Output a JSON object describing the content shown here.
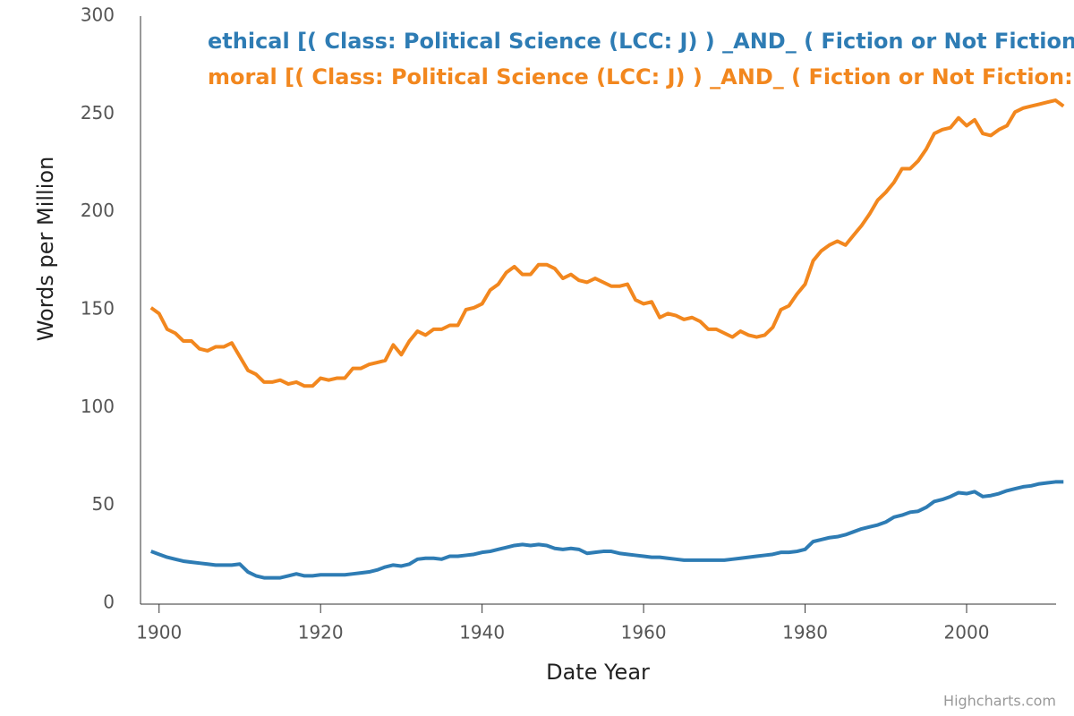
{
  "chart_data": {
    "type": "line",
    "xlabel": "Date Year",
    "ylabel": "Words per Million",
    "credit": "Highcharts.com",
    "x": [
      1899,
      1900,
      1901,
      1902,
      1903,
      1904,
      1905,
      1906,
      1907,
      1908,
      1909,
      1910,
      1911,
      1912,
      1913,
      1914,
      1915,
      1916,
      1917,
      1918,
      1919,
      1920,
      1921,
      1922,
      1923,
      1924,
      1925,
      1926,
      1927,
      1928,
      1929,
      1930,
      1931,
      1932,
      1933,
      1934,
      1935,
      1936,
      1937,
      1938,
      1939,
      1940,
      1941,
      1942,
      1943,
      1944,
      1945,
      1946,
      1947,
      1948,
      1949,
      1950,
      1951,
      1952,
      1953,
      1954,
      1955,
      1956,
      1957,
      1958,
      1959,
      1960,
      1961,
      1962,
      1963,
      1964,
      1965,
      1966,
      1967,
      1968,
      1969,
      1970,
      1971,
      1972,
      1973,
      1974,
      1975,
      1976,
      1977,
      1978,
      1979,
      1980,
      1981,
      1982,
      1983,
      1984,
      1985,
      1986,
      1987,
      1988,
      1989,
      1990,
      1991,
      1992,
      1993,
      1994,
      1995,
      1996,
      1997,
      1998,
      1999,
      2000,
      2001,
      2002,
      2003,
      2004,
      2005,
      2006,
      2007,
      2008,
      2009,
      2010,
      2011,
      2012
    ],
    "series": [
      {
        "name": "ethical [( Class: Political Science (LCC: J) ) _AND_ ( Fiction or Not Fiction:",
        "color": "#2e7cb4",
        "values": [
          26.5,
          25,
          23.5,
          22.5,
          21.5,
          21,
          20.5,
          20,
          19.5,
          19.5,
          19.5,
          20,
          16,
          14,
          13,
          13,
          13,
          14,
          15,
          14,
          14,
          14.5,
          14.5,
          14.5,
          14.5,
          15,
          15.5,
          16,
          17,
          18.5,
          19.5,
          19,
          20,
          22.5,
          23,
          23,
          22.5,
          24,
          24,
          24.5,
          25,
          26,
          26.5,
          27.5,
          28.5,
          29.5,
          30,
          29.5,
          30,
          29.5,
          28,
          27.5,
          28,
          27.5,
          25.5,
          26,
          26.5,
          26.5,
          25.5,
          25,
          24.5,
          24,
          23.5,
          23.5,
          23,
          22.5,
          22,
          22,
          22,
          22,
          22,
          22,
          22.5,
          23,
          23.5,
          24,
          24.5,
          25,
          26,
          26,
          26.5,
          27.5,
          31.5,
          32.5,
          33.5,
          34,
          35,
          36.5,
          38,
          39,
          40,
          41.5,
          44,
          45,
          46.5,
          47,
          49,
          52,
          53,
          54.5,
          56.5,
          56,
          57,
          54.5,
          55,
          56,
          57.5,
          58.5,
          59.5,
          60,
          61,
          61.5,
          62,
          62
        ]
      },
      {
        "name": "moral [( Class: Political Science (LCC: J) ) _AND_ ( Fiction or Not Fiction:",
        "color": "#f2871e",
        "values": [
          151,
          148,
          140,
          138,
          134,
          134,
          130,
          129,
          131,
          131,
          133,
          126,
          119,
          117,
          113,
          113,
          114,
          112,
          113,
          111,
          111,
          115,
          114,
          115,
          115,
          120,
          120,
          122,
          123,
          124,
          132,
          127,
          134,
          139,
          137,
          140,
          140,
          142,
          142,
          150,
          151,
          153,
          160,
          163,
          169,
          172,
          168,
          168,
          173,
          173,
          171,
          166,
          168,
          165,
          164,
          166,
          164,
          162,
          162,
          163,
          155,
          153,
          154,
          146,
          148,
          147,
          145,
          146,
          144,
          140,
          140,
          138,
          136,
          139,
          137,
          136,
          137,
          141,
          150,
          152,
          158,
          163,
          175,
          180,
          183,
          185,
          183,
          188,
          193,
          199,
          206,
          210,
          215,
          222,
          222,
          226,
          232,
          240,
          242,
          243,
          248,
          244,
          247,
          240,
          239,
          242,
          244,
          251,
          253,
          254,
          255,
          256,
          257,
          254
        ]
      }
    ],
    "xlim": [
      1897.7,
      2013.3
    ],
    "xticks": [
      1900,
      1920,
      1940,
      1960,
      1980,
      2000
    ],
    "ylim": [
      0,
      300
    ],
    "yticks": [
      0,
      50,
      100,
      150,
      200,
      250,
      300
    ]
  }
}
